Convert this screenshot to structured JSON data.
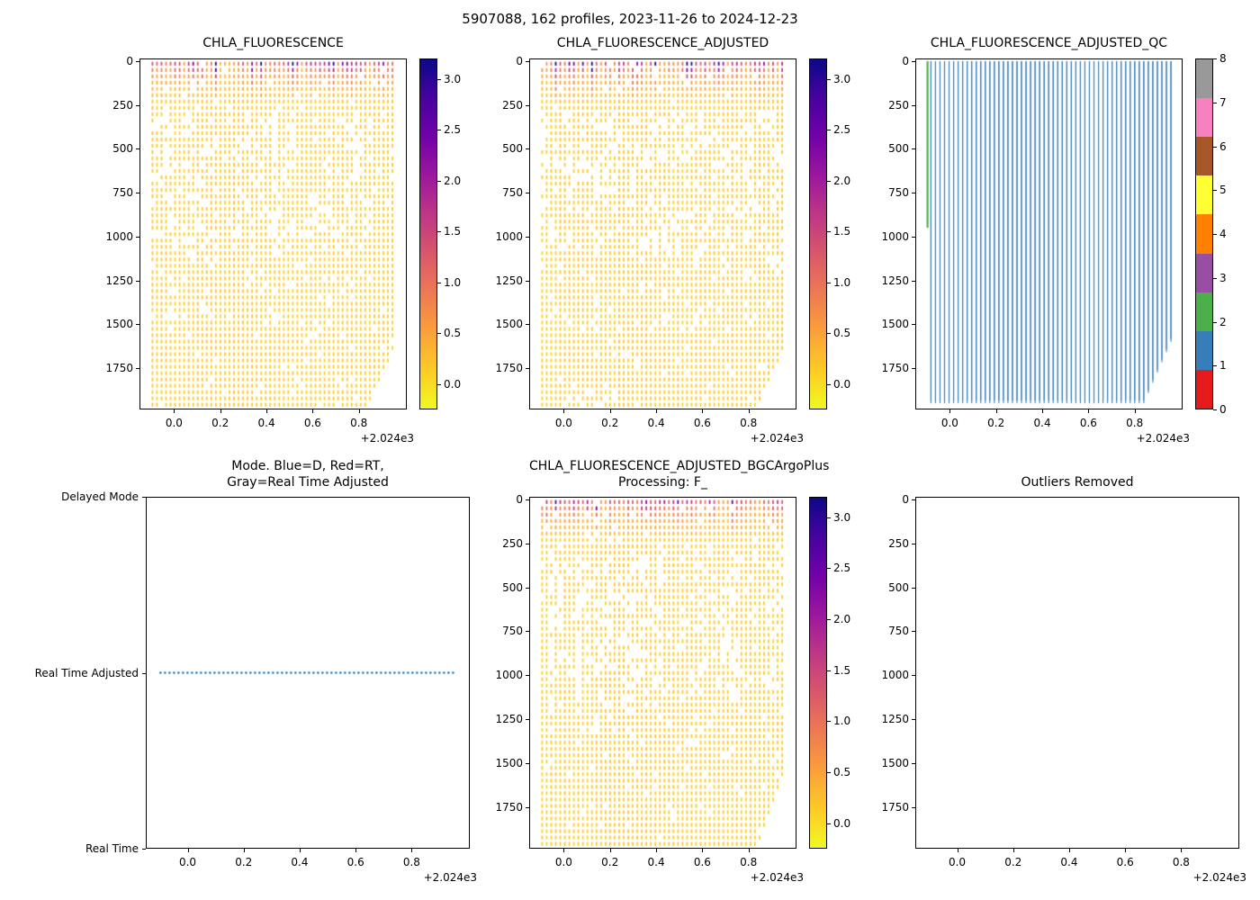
{
  "figure": {
    "title": "5907088, 162 profiles, 2023-11-26 to 2024-12-23"
  },
  "chart_data": [
    {
      "type": "profile_scatter",
      "title": "CHLA_FLUORESCENCE",
      "x_ticks": [
        0.0,
        0.2,
        0.4,
        0.6,
        0.8
      ],
      "x_tick_labels": [
        "0.0",
        "0.2",
        "0.4",
        "0.6",
        "0.8"
      ],
      "x_offset_text": "+2.024e3",
      "xlim": [
        -0.1496,
        1.0076
      ],
      "y_ticks": [
        0,
        250,
        500,
        750,
        1000,
        1250,
        1500,
        1750
      ],
      "y_tick_labels": [
        "0",
        "250",
        "500",
        "750",
        "1000",
        "1250",
        "1500",
        "1750"
      ],
      "ylim": [
        -15,
        1986
      ],
      "seed": 11,
      "series": {
        "name": "CHLA_FLUORESCENCE",
        "n_profiles": 162,
        "x_first": -0.097,
        "x_last": 0.955,
        "depth_top": 0,
        "depth_bottom": 1950,
        "last_profiles_max_depth": 1600,
        "deep_value_typical": 0.1,
        "surface_value_range": [
          0.3,
          2.2
        ]
      },
      "colorbar": {
        "colormap": "plasma_r",
        "vmin": -0.25,
        "vmax": 3.2,
        "ticks": [
          0.0,
          0.5,
          1.0,
          1.5,
          2.0,
          2.5,
          3.0
        ],
        "tick_labels": [
          "0.0",
          "0.5",
          "1.0",
          "1.5",
          "2.0",
          "2.5",
          "3.0"
        ]
      }
    },
    {
      "type": "profile_scatter",
      "title": "CHLA_FLUORESCENCE_ADJUSTED",
      "x_ticks": [
        0.0,
        0.2,
        0.4,
        0.6,
        0.8
      ],
      "x_tick_labels": [
        "0.0",
        "0.2",
        "0.4",
        "0.6",
        "0.8"
      ],
      "x_offset_text": "+2.024e3",
      "xlim": [
        -0.1496,
        1.0076
      ],
      "y_ticks": [
        0,
        250,
        500,
        750,
        1000,
        1250,
        1500,
        1750
      ],
      "y_tick_labels": [
        "0",
        "250",
        "500",
        "750",
        "1000",
        "1250",
        "1500",
        "1750"
      ],
      "ylim": [
        -15,
        1986
      ],
      "seed": 12,
      "series": {
        "name": "CHLA_FLUORESCENCE_ADJUSTED",
        "n_profiles": 162,
        "x_first": -0.097,
        "x_last": 0.955,
        "depth_top": 0,
        "depth_bottom": 1950,
        "last_profiles_max_depth": 1600,
        "deep_value_typical": 0.1,
        "surface_value_range": [
          0.3,
          2.2
        ]
      },
      "colorbar": {
        "colormap": "plasma_r",
        "vmin": -0.25,
        "vmax": 3.2,
        "ticks": [
          0.0,
          0.5,
          1.0,
          1.5,
          2.0,
          2.5,
          3.0
        ],
        "tick_labels": [
          "0.0",
          "0.5",
          "1.0",
          "1.5",
          "2.0",
          "2.5",
          "3.0"
        ]
      }
    },
    {
      "type": "qc_lines",
      "title": "CHLA_FLUORESCENCE_ADJUSTED_QC",
      "x_ticks": [
        0.0,
        0.2,
        0.4,
        0.6,
        0.8
      ],
      "x_tick_labels": [
        "0.0",
        "0.2",
        "0.4",
        "0.6",
        "0.8"
      ],
      "x_offset_text": "+2.024e3",
      "xlim": [
        -0.1496,
        1.0076
      ],
      "y_ticks": [
        0,
        250,
        500,
        750,
        1000,
        1250,
        1500,
        1750
      ],
      "y_tick_labels": [
        "0",
        "250",
        "500",
        "750",
        "1000",
        "1250",
        "1500",
        "1750"
      ],
      "ylim": [
        -15,
        1986
      ],
      "series": {
        "n_profiles": 162,
        "x_first": -0.097,
        "x_last": 0.955,
        "depth_top": 0,
        "depth_bottom": 1950,
        "last_profiles_max_depth": 1600,
        "qc_dominant_value": 1,
        "qc_dominant_color": "#377eb8",
        "special": [
          {
            "profile_index": 0,
            "qc_value": 2,
            "color": "#4daf4a",
            "depth_top": 0,
            "depth_bottom": 950
          }
        ]
      },
      "colorbar": {
        "type": "discrete",
        "values": [
          0,
          1,
          2,
          3,
          4,
          5,
          6,
          7,
          8
        ],
        "tick_labels": [
          "0",
          "1",
          "2",
          "3",
          "4",
          "5",
          "6",
          "7",
          "8"
        ],
        "colors": [
          "#e41a1c",
          "#377eb8",
          "#4daf4a",
          "#984ea3",
          "#ff7f00",
          "#ffff33",
          "#a65628",
          "#f781bf",
          "#999999"
        ]
      }
    },
    {
      "type": "mode_line",
      "title": "Mode. Blue=D, Red=RT,",
      "subtitle": "Gray=Real Time Adjusted",
      "x_ticks": [
        0.0,
        0.2,
        0.4,
        0.6,
        0.8
      ],
      "x_tick_labels": [
        "0.0",
        "0.2",
        "0.4",
        "0.6",
        "0.8"
      ],
      "x_offset_text": "+2.024e3",
      "xlim": [
        -0.1496,
        1.0076
      ],
      "ylim": [
        2,
        0
      ],
      "y_categories": [
        {
          "value": 2,
          "label": "Delayed Mode"
        },
        {
          "value": 1,
          "label": "Real Time Adjusted"
        },
        {
          "value": 0,
          "label": "Real Time"
        }
      ],
      "line": {
        "category": "Real Time Adjusted",
        "value": 1,
        "style": "dotted",
        "color": "#1f77b4",
        "x_first": -0.097,
        "x_last": 0.955
      }
    },
    {
      "type": "profile_scatter",
      "title": "CHLA_FLUORESCENCE_ADJUSTED_BGCArgoPlus",
      "subtitle": "Processing: F_",
      "x_ticks": [
        0.0,
        0.2,
        0.4,
        0.6,
        0.8
      ],
      "x_tick_labels": [
        "0.0",
        "0.2",
        "0.4",
        "0.6",
        "0.8"
      ],
      "x_offset_text": "+2.024e3",
      "xlim": [
        -0.1496,
        1.0076
      ],
      "y_ticks": [
        0,
        250,
        500,
        750,
        1000,
        1250,
        1500,
        1750
      ],
      "y_tick_labels": [
        "0",
        "250",
        "500",
        "750",
        "1000",
        "1250",
        "1500",
        "1750"
      ],
      "ylim": [
        -15,
        1986
      ],
      "seed": 13,
      "series": {
        "name": "CHLA_FLUORESCENCE_ADJUSTED_BGCArgoPlus",
        "n_profiles": 162,
        "x_first": -0.097,
        "x_last": 0.955,
        "depth_top": 0,
        "depth_bottom": 1950,
        "last_profiles_max_depth": 1530,
        "deep_value_typical": 0.1,
        "surface_value_range": [
          0.3,
          2.2
        ]
      },
      "colorbar": {
        "colormap": "plasma_r",
        "vmin": -0.25,
        "vmax": 3.2,
        "ticks": [
          0.0,
          0.5,
          1.0,
          1.5,
          2.0,
          2.5,
          3.0
        ],
        "tick_labels": [
          "0.0",
          "0.5",
          "1.0",
          "1.5",
          "2.0",
          "2.5",
          "3.0"
        ]
      }
    },
    {
      "type": "empty",
      "title": "Outliers Removed",
      "x_ticks": [
        0.0,
        0.2,
        0.4,
        0.6,
        0.8
      ],
      "x_tick_labels": [
        "0.0",
        "0.2",
        "0.4",
        "0.6",
        "0.8"
      ],
      "x_offset_text": "+2.024e3",
      "xlim": [
        -0.1496,
        1.0076
      ],
      "y_ticks": [
        0,
        250,
        500,
        750,
        1000,
        1250,
        1500,
        1750
      ],
      "y_tick_labels": [
        "0",
        "250",
        "500",
        "750",
        "1000",
        "1250",
        "1500",
        "1750"
      ],
      "ylim": [
        -15,
        1986
      ]
    }
  ]
}
